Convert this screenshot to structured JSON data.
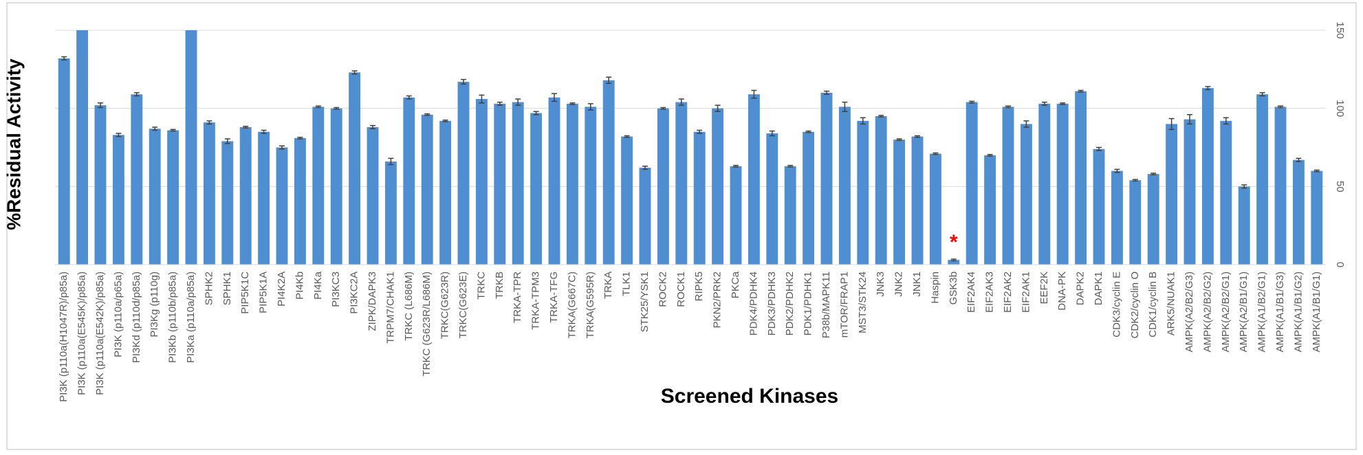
{
  "chart_data": {
    "type": "bar",
    "x_label": "Screened Kinases",
    "y_label": "%Residual Activity",
    "categories": [
      "PI3K (p110a(H1047R)/p85a)",
      "PI3K (p110a(E545K)/p85a)",
      "PI3K (p110a(E542K)/p85a)",
      "PI3K (p110a/p65a)",
      "PI3Kd (p110d/p85a)",
      "PI3Kg (p110g)",
      "PI3Kb (p110b/p85a)",
      "PI3Ka (p110a/p85a)",
      "SPHK2",
      "SPHK1",
      "PIP5K1C",
      "PIP5K1A",
      "PI4K2A",
      "PI4Kb",
      "PI4Ka",
      "PI3KC3",
      "PI3KC2A",
      "ZIPK/DAPK3",
      "TRPM7/CHAK1",
      "TRKC (L686M)",
      "TRKC (G623R/L686M)",
      "TRKC(G623R)",
      "TRKC(G623E)",
      "TRKC",
      "TRKB",
      "TRKA-TPR",
      "TRKA-TPM3",
      "TRKA-TFG",
      "TRKA(G667C)",
      "TRKA(G595R)",
      "TRKA",
      "TLK1",
      "STK25/YSK1",
      "ROCK2",
      "ROCK1",
      "RIPK5",
      "PKN2/PRK2",
      "PKCa",
      "PDK4/PDHK4",
      "PDK3/PDHK3",
      "PDK2/PDHK2",
      "PDK1/PDHK1",
      "P38b/MAPK11",
      "mTOR/FRAP1",
      "MST3/STK24",
      "JNK3",
      "JNK2",
      "JNK1",
      "Haspin",
      "GSK3b",
      "EIF2AK4",
      "EIF2AK3",
      "EIF2AK2",
      "EIF2AK1",
      "EEF2K",
      "DNA-PK",
      "DAPK2",
      "DAPK1",
      "CDK3/cyclin E",
      "CDK2/cyclin O",
      "CDK1/cyclin B",
      "ARK5/NUAK1",
      "AMPK(A2/B2/G3)",
      "AMPK(A2/B2/G2)",
      "AMPK(A2/B2/G1)",
      "AMPK(A2/B1/G1)",
      "AMPK(A1/B2/G1)",
      "AMPK(A1/B1/G3)",
      "AMPK(A1/B1/G2)",
      "AMPK(A1/B1/G1)"
    ],
    "values": [
      132,
      150,
      102,
      83,
      109,
      87,
      86,
      150,
      91,
      79,
      88,
      85,
      75,
      81,
      101,
      100,
      123,
      88,
      66,
      107,
      96,
      92,
      117,
      106,
      103,
      104,
      97,
      107,
      103,
      101,
      118,
      82,
      62,
      100,
      104,
      85,
      100,
      63,
      109,
      84,
      63,
      85,
      110,
      101,
      92,
      95,
      80,
      82,
      71,
      3,
      104,
      70,
      101,
      90,
      103,
      103,
      111,
      74,
      60,
      54,
      58,
      90,
      93,
      113,
      92,
      50,
      109,
      101,
      67,
      60
    ],
    "errors": [
      1,
      0,
      1.5,
      1,
      1,
      1,
      0.5,
      0,
      1,
      1.5,
      0.5,
      1,
      1,
      0.5,
      0.5,
      0.5,
      1,
      1,
      2,
      1,
      0.5,
      0.5,
      1.5,
      2.5,
      1,
      2,
      1,
      2.5,
      0.5,
      2,
      2,
      0.5,
      1,
      0.5,
      2,
      1,
      2,
      0.5,
      2.5,
      1.5,
      0.5,
      0.5,
      1,
      3,
      2,
      0.5,
      0.5,
      0.5,
      0.5,
      0.5,
      0.5,
      0.5,
      0.5,
      2,
      1,
      0.5,
      0.5,
      1,
      1,
      0.5,
      0.5,
      3.5,
      3,
      1,
      2,
      1,
      1,
      0.5,
      1,
      0.5
    ],
    "color": "#4f8fd1",
    "ylim": [
      0,
      150
    ],
    "yticks": [
      0,
      50,
      100,
      150
    ],
    "grid": true,
    "annotations": [
      {
        "text": "*",
        "category": "GSK3b",
        "color": "#ff0000"
      }
    ]
  }
}
